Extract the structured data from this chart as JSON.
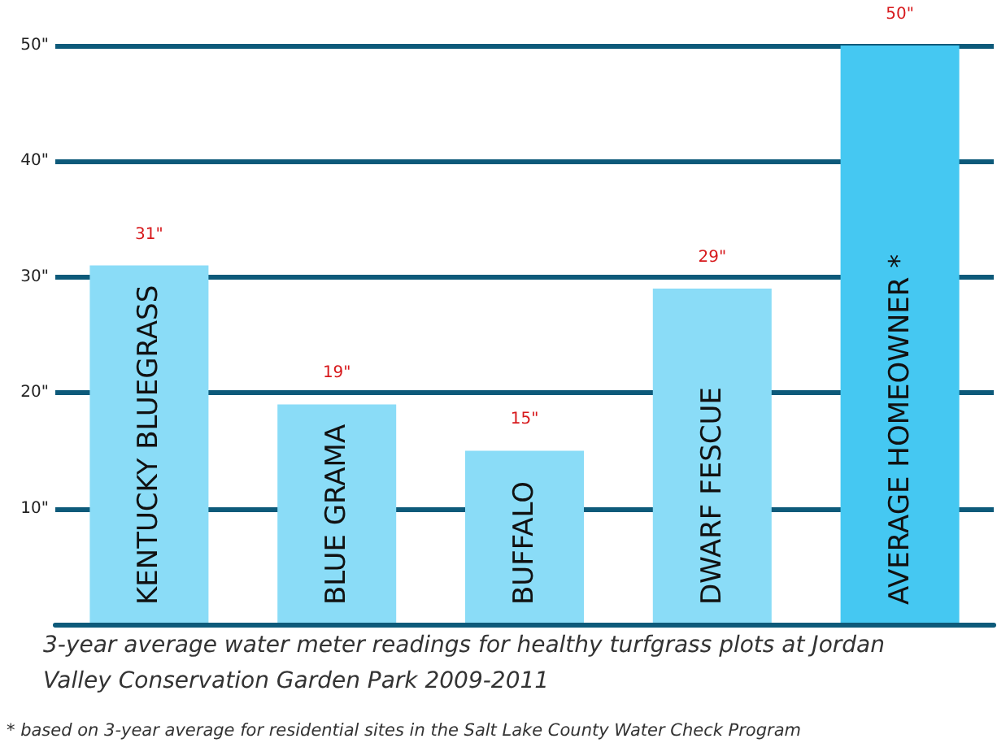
{
  "chart_data": {
    "type": "bar",
    "title": "3-year average water meter readings for healthy turfgrass plots at Jordan Valley Conservation Garden Park 2009-2011",
    "annotations": [
      "* based on 3-year average for residential sites in the Salt Lake County Water Check Program"
    ],
    "categories": [
      "KENTUCKY BLUEGRASS",
      "BLUE GRAMA",
      "BUFFALO",
      "DWARF FESCUE",
      "AVERAGE HOMEOWNER *"
    ],
    "values": [
      31,
      19,
      15,
      29,
      50
    ],
    "value_labels": [
      "31\"",
      "19\"",
      "15\"",
      "29\"",
      "50\""
    ],
    "colors": [
      "#8adcf7",
      "#8adcf7",
      "#8adcf7",
      "#8adcf7",
      "#45c8f2"
    ],
    "ylim": [
      0,
      50
    ],
    "yticks": [
      {
        "value": 10,
        "label": "10\""
      },
      {
        "value": 20,
        "label": "20\""
      },
      {
        "value": 30,
        "label": "30\""
      },
      {
        "value": 40,
        "label": "40\""
      },
      {
        "value": 50,
        "label": "50\""
      }
    ],
    "grid": "y"
  }
}
